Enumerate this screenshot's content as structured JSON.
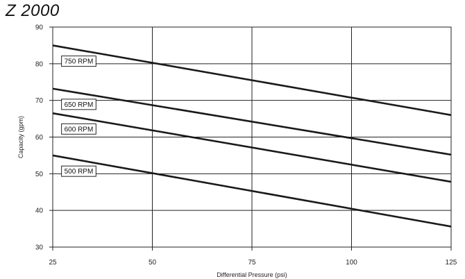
{
  "chart_data": {
    "type": "line",
    "title": "Z 2000",
    "xlabel": "Differential Pressure (psi)",
    "ylabel": "Capacity (gpm)",
    "xlim": [
      25,
      125
    ],
    "ylim": [
      30,
      90
    ],
    "xticks": [
      25,
      50,
      75,
      100,
      125
    ],
    "yticks": [
      30,
      40,
      50,
      60,
      70,
      80,
      90
    ],
    "grid": true,
    "series": [
      {
        "name": "750 RPM",
        "x": [
          25,
          125
        ],
        "y": [
          85,
          66
        ]
      },
      {
        "name": "650 RPM",
        "x": [
          25,
          125
        ],
        "y": [
          73.2,
          55.2
        ]
      },
      {
        "name": "600 RPM",
        "x": [
          25,
          125
        ],
        "y": [
          66.5,
          47.8
        ]
      },
      {
        "name": "500 RPM",
        "x": [
          25,
          125
        ],
        "y": [
          55,
          35.6
        ]
      }
    ]
  }
}
